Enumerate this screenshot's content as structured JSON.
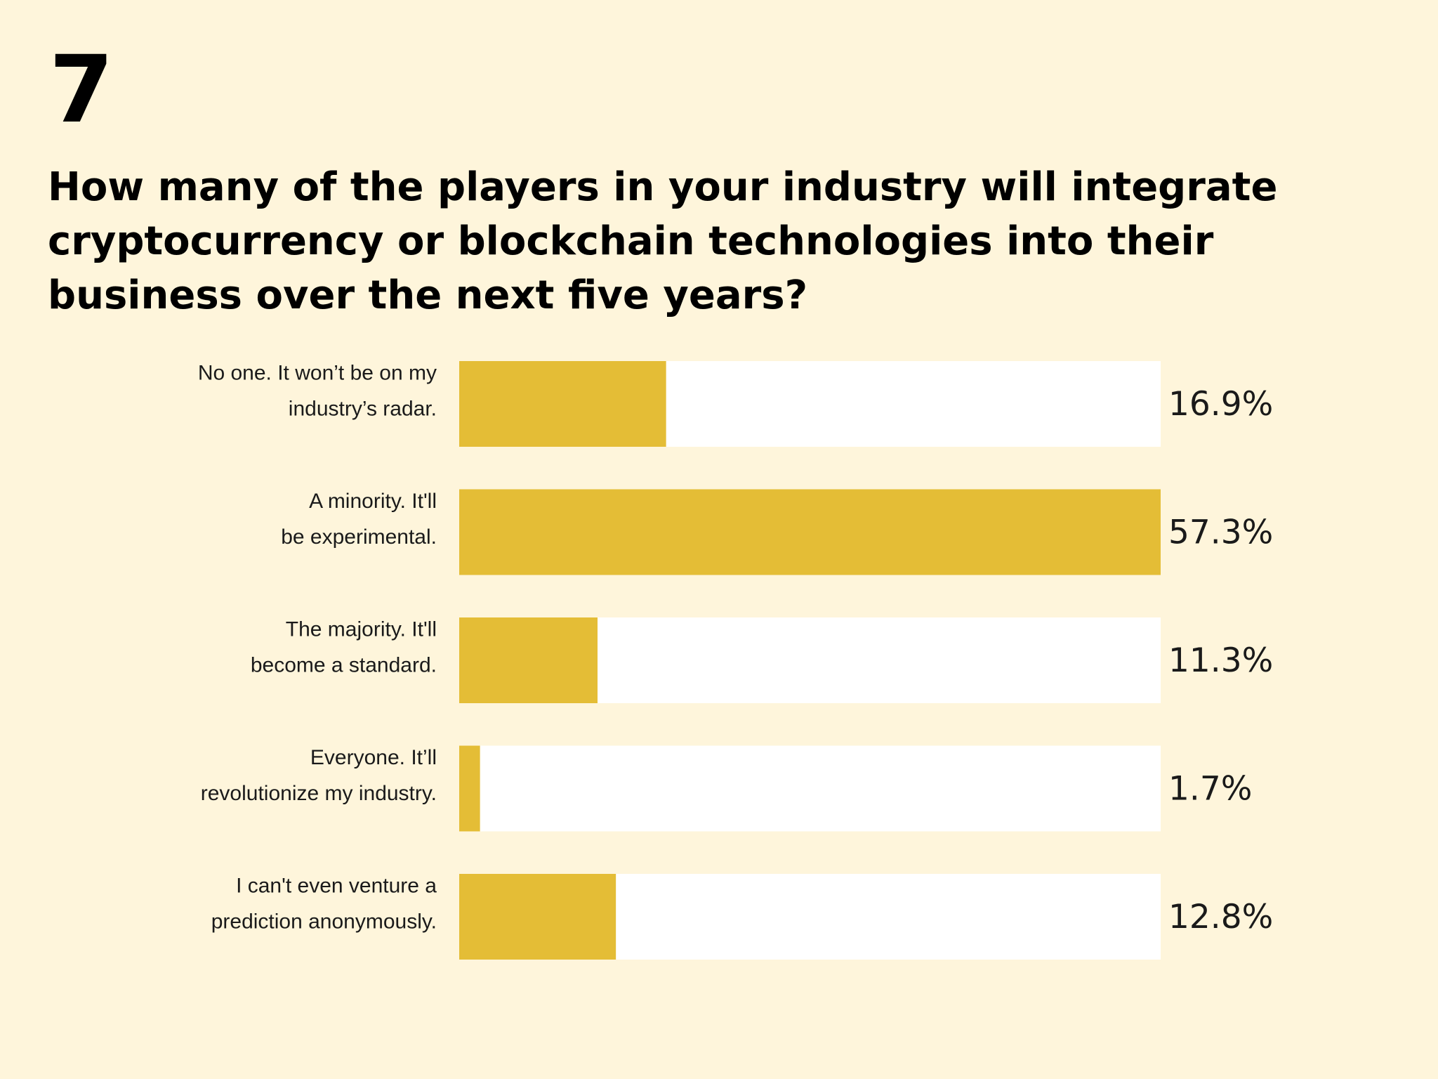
{
  "question": {
    "number": "7",
    "title": "How many of the players in your industry will integrate cryptocurrency or blockchain technologies into their business over the next five years?"
  },
  "chart_data": {
    "type": "bar",
    "orientation": "horizontal",
    "categories": [
      [
        "No one. It won’t be on my",
        "industry’s radar."
      ],
      [
        "A minority. It'll",
        "be experimental."
      ],
      [
        "The majority. It'll",
        "become a standard."
      ],
      [
        "Everyone. It’ll",
        "revolutionize my industry."
      ],
      [
        "I can't even venture a",
        "prediction anonymously."
      ]
    ],
    "values": [
      16.9,
      57.3,
      11.3,
      1.7,
      12.8
    ],
    "value_labels": [
      "16.9%",
      "57.3%",
      "11.3%",
      "1.7%",
      "12.8%"
    ],
    "xlim": [
      0,
      57.3
    ],
    "grid": false,
    "legend": "none",
    "colors": {
      "fill": "#e4bd36",
      "track": "#ffffff",
      "background": "#fef5db"
    }
  }
}
